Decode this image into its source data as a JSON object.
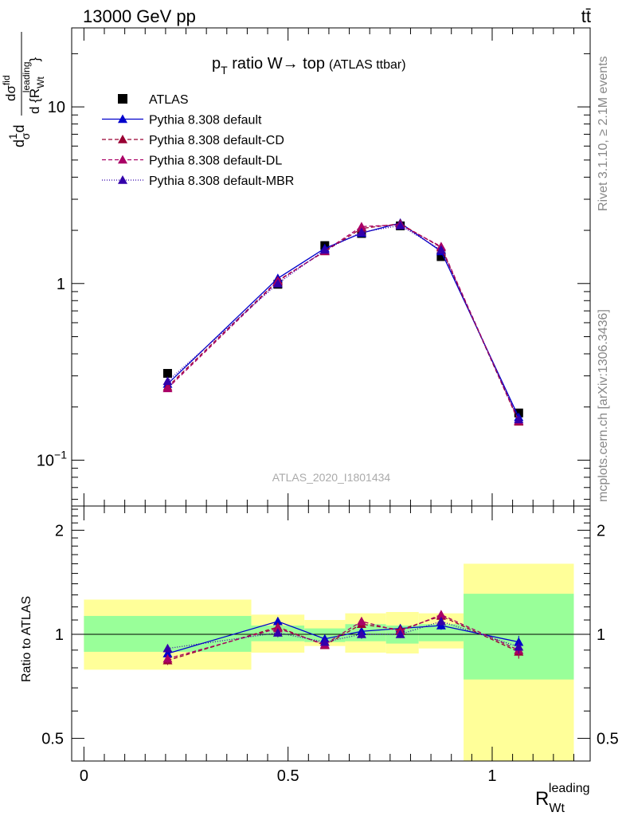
{
  "header": {
    "left": "13000 GeV pp",
    "right": "tt̄"
  },
  "side_labels": {
    "rivet": "Rivet 3.1.10, ≥ 2.1M events",
    "mcplots": "mcplots.cern.ch [arXiv:1306.3436]"
  },
  "watermark": "ATLAS_2020_I1801434",
  "colors": {
    "data": "#000000",
    "default": "#0000cc",
    "cd": "#990033",
    "dl": "#aa0066",
    "mbr": "#3300aa",
    "band_inner": "#99ff99",
    "band_outer": "#ffff99"
  },
  "chart_data": [
    {
      "type": "line",
      "title": "p_T ratio W → top (ATLAS ttbar)",
      "title_parts": {
        "p": "p",
        "sub": "T",
        "main": " ratio W→ top",
        "small": "(ATLAS ttbar)"
      },
      "ylabel": "dσ/d{R_Wt^leading} (1/σ)",
      "ylabel_parts": {
        "pre": "d",
        "frac_num": "1",
        "frac_den": "σ",
        "d": "d",
        "top": "dσ",
        "top_sup": "fid",
        "bottom": "d {R",
        "bottom_sub": "Wt",
        "bottom_sup": "leading",
        "close": "}"
      },
      "yscale": "log",
      "ylim": [
        0.055,
        28
      ],
      "xlim": [
        -0.03,
        1.24
      ],
      "ytick_labels": [
        {
          "value": 0.1,
          "base": "10",
          "exp": "−1"
        },
        {
          "value": 1,
          "base": "1",
          "exp": ""
        },
        {
          "value": 10,
          "base": "10",
          "exp": ""
        }
      ],
      "legend": [
        {
          "label": "ATLAS",
          "key": "data",
          "marker": "square",
          "dash": ""
        },
        {
          "label": "Pythia 8.308 default",
          "key": "default",
          "marker": "triangle",
          "dash": ""
        },
        {
          "label": "Pythia 8.308 default-CD",
          "key": "cd",
          "marker": "triangle",
          "dash": "5,3"
        },
        {
          "label": "Pythia 8.308 default-DL",
          "key": "dl",
          "marker": "triangle",
          "dash": "5,3"
        },
        {
          "label": "Pythia 8.308 default-MBR",
          "key": "mbr",
          "marker": "triangle",
          "dash": "1,2"
        }
      ],
      "legend_position": "top-left",
      "x": [
        0.205,
        0.475,
        0.59,
        0.68,
        0.775,
        0.875,
        1.065
      ],
      "series": [
        {
          "name": "ATLAS",
          "key": "data",
          "values": [
            0.31,
            0.99,
            1.64,
            1.92,
            2.12,
            1.42,
            0.185
          ]
        },
        {
          "name": "Pythia 8.308 default",
          "key": "default",
          "values": [
            0.27,
            1.07,
            1.58,
            1.93,
            2.2,
            1.52,
            0.175
          ]
        },
        {
          "name": "Pythia 8.308 default-CD",
          "key": "cd",
          "values": [
            0.26,
            1.04,
            1.52,
            2.05,
            2.18,
            1.6,
            0.165
          ]
        },
        {
          "name": "Pythia 8.308 default-DL",
          "key": "dl",
          "values": [
            0.255,
            1.03,
            1.53,
            2.1,
            2.15,
            1.62,
            0.167
          ]
        },
        {
          "name": "Pythia 8.308 default-MBR",
          "key": "mbr",
          "values": [
            0.28,
            1.0,
            1.55,
            1.95,
            2.13,
            1.55,
            0.17
          ]
        }
      ]
    },
    {
      "type": "line",
      "ylabel": "Ratio to ATLAS",
      "xlabel": "R_Wt^leading",
      "xlabel_parts": {
        "main": "R",
        "sub": "Wt",
        "sup": "leading"
      },
      "yscale": "log",
      "ylim": [
        0.43,
        2.35
      ],
      "xlim": [
        -0.03,
        1.24
      ],
      "xticks": [
        0,
        0.5,
        1
      ],
      "xtick_labels": [
        "0",
        "0.5",
        "1"
      ],
      "ytick_labels": [
        {
          "value": 0.5,
          "label": "0.5"
        },
        {
          "value": 1,
          "label": "1"
        },
        {
          "value": 2,
          "label": "2"
        }
      ],
      "reference_line": 1,
      "bands": [
        {
          "x0": 0.0,
          "x1": 0.41,
          "inner": [
            0.89,
            1.13
          ],
          "outer": [
            0.79,
            1.26
          ]
        },
        {
          "x0": 0.41,
          "x1": 0.54,
          "inner": [
            0.955,
            1.06
          ],
          "outer": [
            0.885,
            1.14
          ]
        },
        {
          "x0": 0.54,
          "x1": 0.64,
          "inner": [
            0.95,
            1.04
          ],
          "outer": [
            0.925,
            1.1
          ]
        },
        {
          "x0": 0.64,
          "x1": 0.74,
          "inner": [
            0.955,
            1.07
          ],
          "outer": [
            0.885,
            1.15
          ]
        },
        {
          "x0": 0.74,
          "x1": 0.82,
          "inner": [
            0.94,
            1.06
          ],
          "outer": [
            0.88,
            1.16
          ]
        },
        {
          "x0": 0.82,
          "x1": 0.93,
          "inner": [
            0.955,
            1.07
          ],
          "outer": [
            0.91,
            1.15
          ]
        },
        {
          "x0": 0.93,
          "x1": 1.2,
          "inner": [
            0.74,
            1.31
          ],
          "outer": [
            0.43,
            1.6
          ]
        }
      ],
      "x": [
        0.205,
        0.475,
        0.59,
        0.68,
        0.775,
        0.875,
        1.065
      ],
      "series": [
        {
          "name": "Pythia 8.308 default",
          "key": "default",
          "values": [
            0.88,
            1.09,
            0.97,
            1.02,
            1.04,
            1.06,
            0.95
          ],
          "errors": [
            0.025,
            0.03,
            0.02,
            0.03,
            0.025,
            0.03,
            0.04
          ]
        },
        {
          "name": "Pythia 8.308 default-CD",
          "key": "cd",
          "values": [
            0.84,
            1.05,
            0.93,
            1.07,
            1.03,
            1.13,
            0.89
          ],
          "errors": [
            0.025,
            0.03,
            0.02,
            0.03,
            0.025,
            0.03,
            0.04
          ]
        },
        {
          "name": "Pythia 8.308 default-DL",
          "key": "dl",
          "values": [
            0.85,
            1.04,
            0.935,
            1.09,
            1.02,
            1.14,
            0.9
          ],
          "errors": [
            0.025,
            0.03,
            0.02,
            0.03,
            0.025,
            0.03,
            0.04
          ]
        },
        {
          "name": "Pythia 8.308 default-MBR",
          "key": "mbr",
          "values": [
            0.91,
            1.01,
            0.95,
            1.0,
            1.0,
            1.09,
            0.92
          ],
          "errors": [
            0.025,
            0.03,
            0.02,
            0.03,
            0.025,
            0.03,
            0.04
          ]
        }
      ]
    }
  ]
}
